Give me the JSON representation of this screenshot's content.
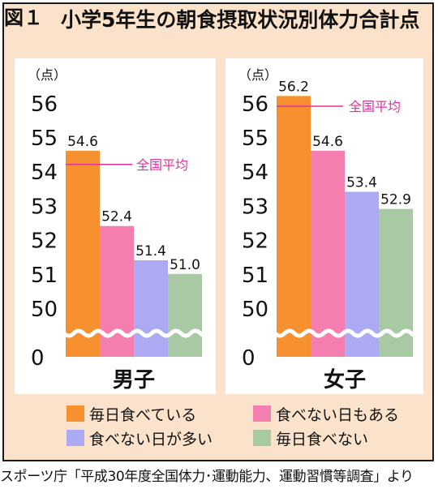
{
  "figure": {
    "label": "図１",
    "title": "小学5年生の朝食摂取状況別体力合計点",
    "source": "スポーツ庁「平成30年度全国体力･運動能力、運動習慣等調査」より"
  },
  "chart_data": [
    {
      "type": "bar",
      "xlabel": "男子",
      "ylabel": "（点）",
      "categories": [
        "毎日食べている",
        "食べない日もある",
        "食べない日が多い",
        "毎日食べない"
      ],
      "values": [
        54.6,
        52.4,
        51.4,
        51.0
      ],
      "value_labels": [
        "54.6",
        "52.4",
        "51.4",
        "51.0"
      ],
      "reference_line": {
        "label": "全国平均",
        "value": 54.2
      },
      "ylim": [
        50,
        56.6
      ],
      "yticks": [
        "56",
        "55",
        "54",
        "53",
        "52",
        "51",
        "50",
        "0"
      ],
      "axis_break": true
    },
    {
      "type": "bar",
      "xlabel": "女子",
      "ylabel": "（点）",
      "categories": [
        "毎日食べている",
        "食べない日もある",
        "食べない日が多い",
        "毎日食べない"
      ],
      "values": [
        56.2,
        54.6,
        53.4,
        52.9
      ],
      "value_labels": [
        "56.2",
        "54.6",
        "53.4",
        "52.9"
      ],
      "reference_line": {
        "label": "全国平均",
        "value": 55.9
      },
      "ylim": [
        50,
        56.6
      ],
      "yticks": [
        "56",
        "55",
        "54",
        "53",
        "52",
        "51",
        "50",
        "0"
      ],
      "axis_break": true
    }
  ],
  "legend": [
    {
      "label": "毎日食べている",
      "color": "#f7902f"
    },
    {
      "label": "食べない日もある",
      "color": "#f57eb1"
    },
    {
      "label": "食べない日が多い",
      "color": "#abaaf3"
    },
    {
      "label": "毎日食べない",
      "color": "#a8c9a4"
    }
  ],
  "colors": {
    "background": "#fbe2ca",
    "panel": "#ffffff",
    "reference_line": "#e0339b"
  }
}
